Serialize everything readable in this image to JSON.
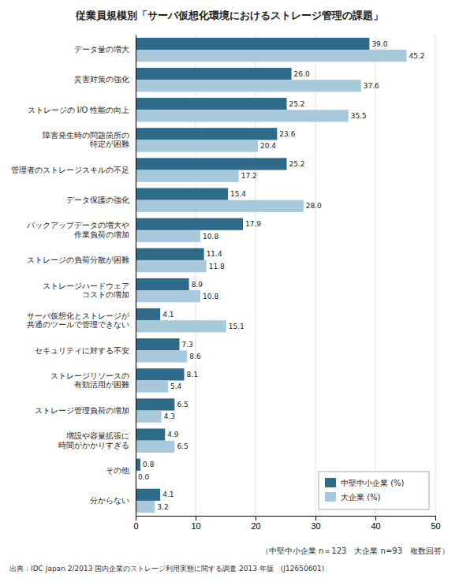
{
  "chart_data": {
    "type": "bar",
    "orientation": "horizontal",
    "title": "従業員規模別「サーバ仮想化環境におけるストレージ管理の課題」",
    "categories": [
      "データ量の増大",
      "災害対策の強化",
      "ストレージの I/O 性能の向上",
      "障害発生時の問題箇所の\n特定が困難",
      "管理者のストレージスキルの不足",
      "データ保護の強化",
      "バックアップデータの増大や\n作業負荷の増加",
      "ストレージの負荷分散が困難",
      "ストレージハードウェア\nコストの増加",
      "サーバ仮想化とストレージが\n共通のツールで管理できない",
      "セキュリティに対する不安",
      "ストレージリソースの\n有効活用が困難",
      "ストレージ管理負荷の増加",
      "増設や容量拡張に\n時間がかかりすぎる",
      "その他",
      "分からない"
    ],
    "series": [
      {
        "name": "中堅中小企業 (%)",
        "color": "#2e6b8a",
        "values": [
          39.0,
          26.0,
          25.2,
          23.6,
          25.2,
          15.4,
          17.9,
          11.4,
          8.9,
          4.1,
          7.3,
          8.1,
          6.5,
          4.9,
          0.8,
          4.1
        ],
        "value_labels": [
          "39.0",
          "26.0",
          "25.2",
          "23.6",
          "25.2",
          "15.4",
          "17.9",
          "11.4",
          "8.9",
          "4.1",
          "7.3",
          "8.1",
          "6.5",
          "4.9",
          "0.8",
          "4.1"
        ]
      },
      {
        "name": "大企業 (%)",
        "color": "#a8c8dc",
        "values": [
          45.2,
          37.6,
          35.5,
          20.4,
          17.2,
          28.0,
          10.8,
          11.8,
          10.8,
          15.1,
          8.6,
          5.4,
          4.3,
          6.5,
          0.0,
          3.2
        ],
        "value_labels": [
          "45.2",
          "37.6",
          "35.5",
          "20.4",
          "17.2",
          "28.0",
          "10.8",
          "11.8",
          "10.8",
          "15.1",
          "8.6",
          "5.4",
          "4.3",
          "6.5",
          "0.0",
          "3.2"
        ]
      }
    ],
    "xlim": [
      0,
      50
    ],
    "xticks": [
      0,
      10,
      20,
      30,
      40,
      50
    ],
    "grid": true,
    "legend": "lower right",
    "data_labels": true,
    "annotations": [
      "（中堅中小企業 n＝123　大企業 n=93　複数回答）",
      "出典：IDC Japan 2/2013 国内企業のストレージ利用実態に関する調査 2013 年版　(J12650601)"
    ]
  }
}
